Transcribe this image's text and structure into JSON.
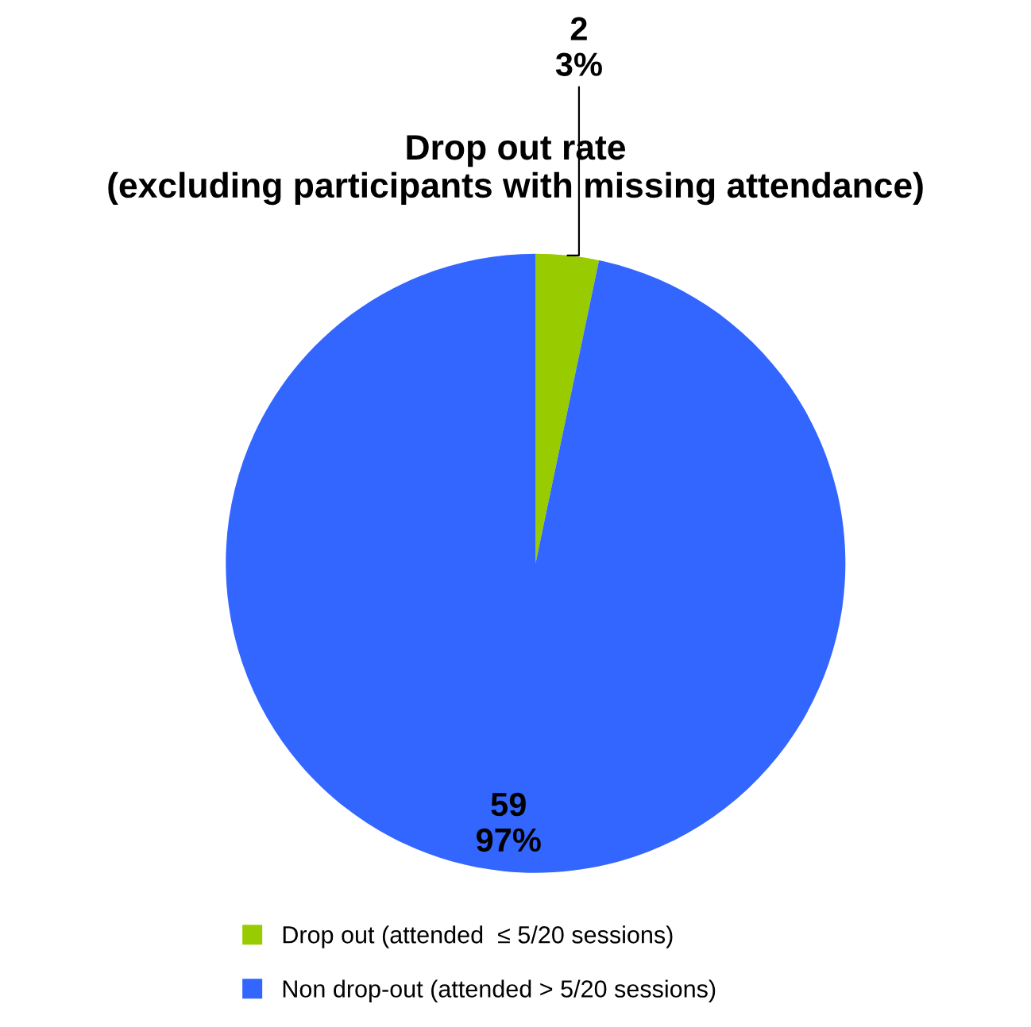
{
  "chart_data": {
    "type": "pie",
    "title": "Drop out rate\n(excluding participants with missing attendance)",
    "categories": [
      "Drop out (attended  ≤ 5/20 sessions)",
      "Non drop-out (attended > 5/20 sessions)"
    ],
    "values": [
      2,
      59
    ],
    "colors": [
      "#99cc00",
      "#3366ff"
    ],
    "value_labels": [
      "2\n3%",
      "59\n97%"
    ],
    "legend": "bottom left"
  }
}
